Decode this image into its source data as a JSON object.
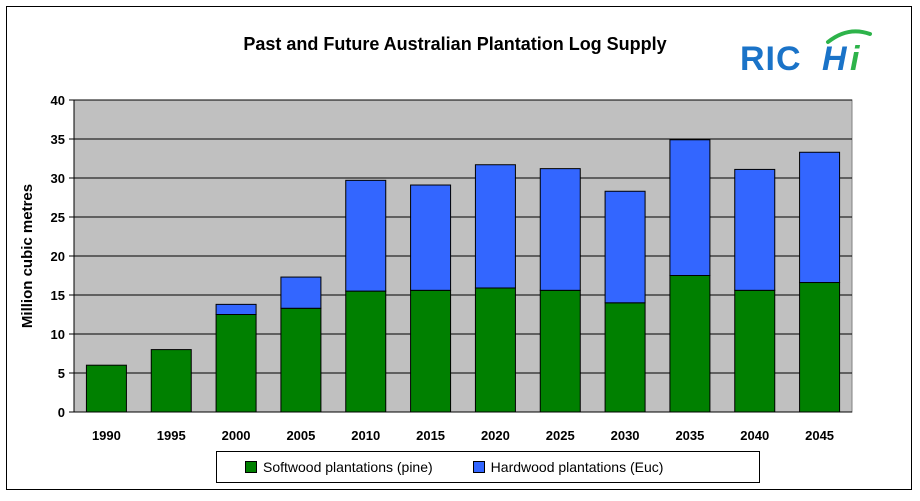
{
  "chart_data": {
    "type": "bar",
    "stacked": true,
    "title": "Past and Future Australian Plantation Log Supply",
    "ylabel": "Million cubic metres",
    "xlabel": "",
    "ylim": [
      0,
      40
    ],
    "yticks": [
      0,
      5,
      10,
      15,
      20,
      25,
      30,
      35,
      40
    ],
    "grid": true,
    "legend_position": "bottom",
    "categories": [
      "1990",
      "1995",
      "2000",
      "2005",
      "2010",
      "2015",
      "2020",
      "2025",
      "2030",
      "2035",
      "2040",
      "2045"
    ],
    "series": [
      {
        "name": "Softwood plantations (pine)",
        "color": "#008000",
        "values": [
          6.0,
          8.0,
          12.5,
          13.3,
          15.5,
          15.6,
          15.9,
          15.6,
          14.0,
          17.5,
          15.6,
          16.6
        ]
      },
      {
        "name": "Hardwood plantations (Euc)",
        "color": "#3366FF",
        "values": [
          0.0,
          0.0,
          1.3,
          4.0,
          14.2,
          13.5,
          15.8,
          15.6,
          14.3,
          17.4,
          15.5,
          16.7
        ]
      }
    ],
    "plot_background": "#C0C0C0"
  },
  "logo": {
    "text": "RICHi",
    "main_color": "#1a73c8",
    "accent_color": "#2db34a"
  }
}
